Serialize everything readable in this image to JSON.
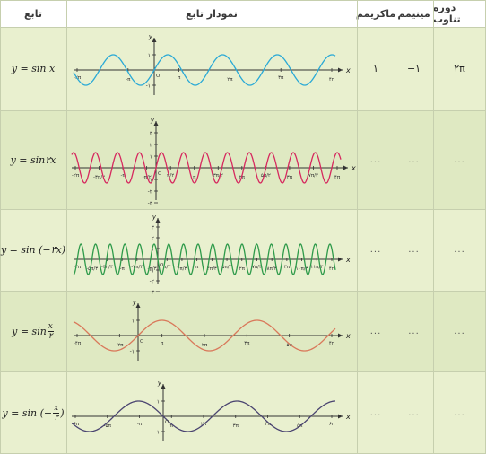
{
  "header": {
    "period": "دوره تناوب",
    "minimum": "مینیمم",
    "maximum": "ماکزیمم",
    "graph": "نمودار تابع",
    "function": "تابع"
  },
  "rows": [
    {
      "func_main": "y = sin x",
      "period": "۲π",
      "minimum": "−۱",
      "maximum": "۱",
      "graph": {
        "color": "#2aa9d6",
        "yticks": [
          "۱",
          "-۱"
        ],
        "xticks": [
          "-۲π",
          "-π",
          "π",
          "۲π",
          "۳π",
          "۴π"
        ]
      }
    },
    {
      "func_main": "y = sin۲x",
      "period": "...",
      "minimum": "...",
      "maximum": "...",
      "graph": {
        "color": "#d6285e",
        "yticks": [
          "۳",
          "۲",
          "۱",
          "-۱",
          "-۲",
          "-۳"
        ],
        "xticks": [
          "-۲π",
          "-۳π/۲",
          "-π",
          "-π/۲",
          "π/۲",
          "π",
          "۳π/۲",
          "۲π",
          "۵π/۲",
          "۳π",
          "۷π/۲",
          "۴π"
        ]
      }
    },
    {
      "func_main": "y = sin (−۳x)",
      "period": "...",
      "minimum": "...",
      "maximum": "...",
      "graph": {
        "color": "#2e9a4a",
        "yticks": [
          "۳",
          "۲",
          "۱",
          "-۱",
          "-۲",
          "-۳"
        ],
        "xticks": [
          "-۲π",
          "-۵π/۳",
          "-۴π/۳",
          "-π",
          "-۲π/۳",
          "-π/۳",
          "π/۳",
          "۲π/۳",
          "π",
          "۴π/۳",
          "۵π/۳",
          "۲π",
          "۷π/۳",
          "۸π/۳",
          "۳π",
          "۱۰π/۳",
          "۱۱π/۳",
          "۴π"
        ]
      }
    },
    {
      "func_main": "y = sin",
      "frac_num": "x",
      "frac_den": "۲",
      "period": "...",
      "minimum": "...",
      "maximum": "...",
      "graph": {
        "color": "#d9785a",
        "yticks": [
          "۱",
          "-۱"
        ],
        "xticks": [
          "-۴π",
          "-۲π",
          "π",
          "۲π",
          "۳π",
          "۵π",
          "۴π"
        ]
      }
    },
    {
      "func_main": "y = sin (−",
      "frac_num": "x",
      "frac_den": "۳",
      "func_tail": ")",
      "period": "...",
      "minimum": "...",
      "maximum": "...",
      "graph": {
        "color": "#4a4470",
        "yticks": [
          "۱",
          "-۱"
        ],
        "xticks": [
          "-۶π",
          "-۵π",
          "-π",
          "π",
          "۲π",
          "۳π",
          "۴π",
          "۵π",
          "۶π"
        ]
      }
    }
  ],
  "colors": {
    "header_bg": "#ffffff",
    "row_odd": "#e9f0cf",
    "row_even": "#dfe9c2",
    "border": "#c6cfae",
    "axis": "#333333"
  }
}
